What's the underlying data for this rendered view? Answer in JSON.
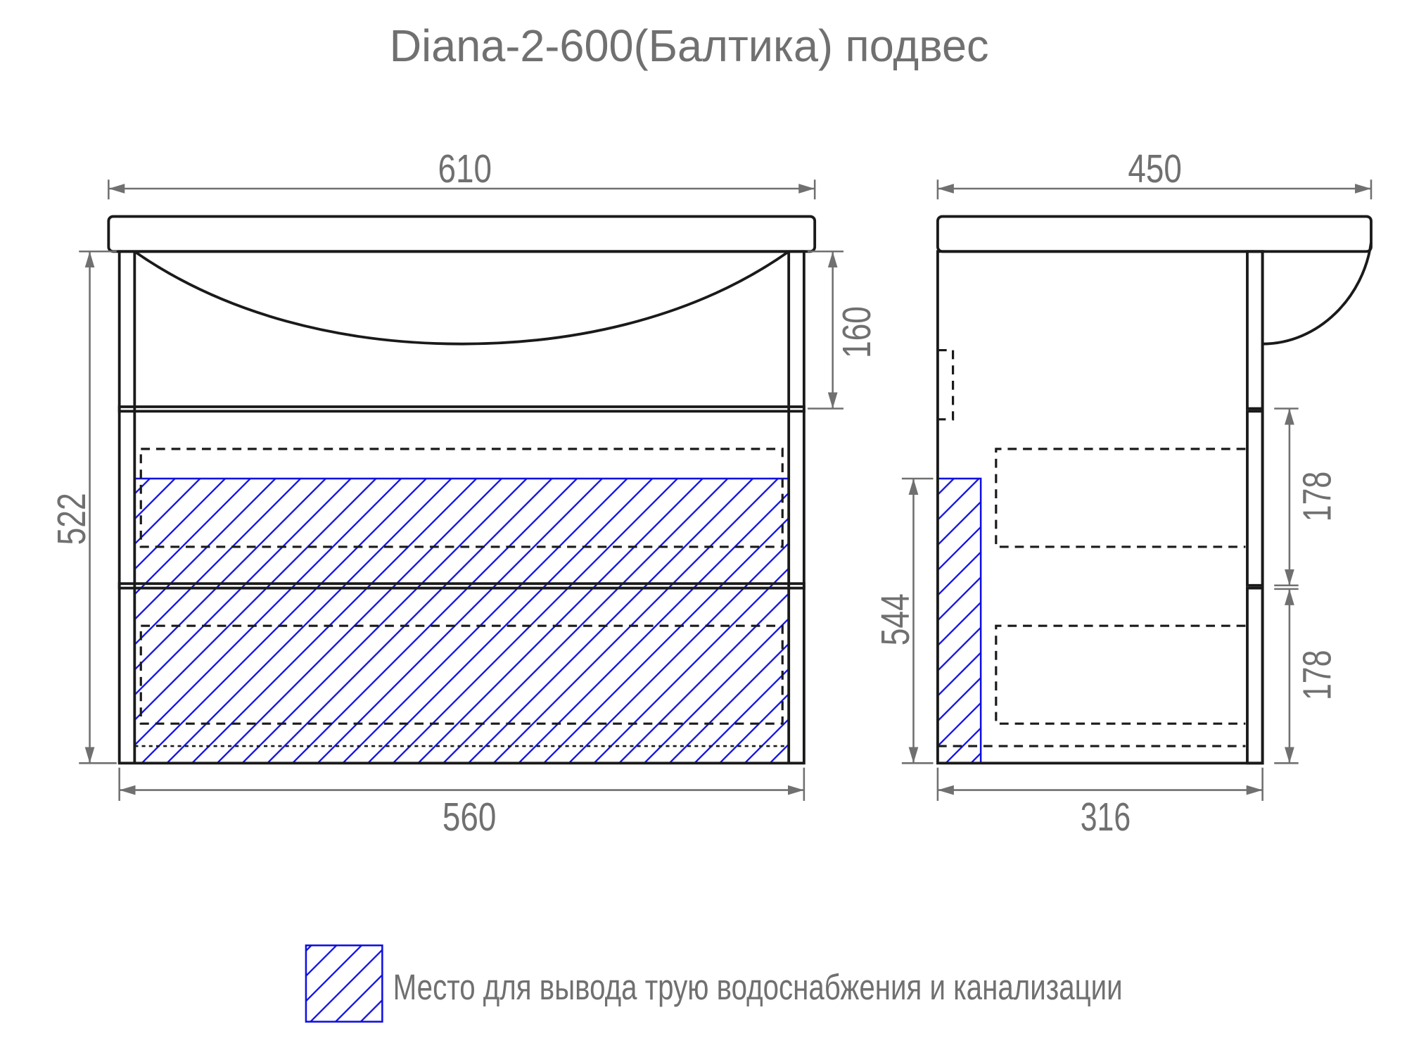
{
  "title": "Diana-2-600(Балтика) подвес",
  "front_view": {
    "dimensions": {
      "overall_width": "610",
      "body_width": "560",
      "height": "522",
      "basin_depth": "160"
    }
  },
  "side_view": {
    "dimensions": {
      "overall_depth": "450",
      "body_depth": "316",
      "pipe_zone_height": "544",
      "drawer_upper": "178",
      "drawer_lower": "178"
    }
  },
  "legend": {
    "label": "Место для вывода трую водоснабжения и канализации",
    "hatch_color": "#1010e0"
  },
  "colors": {
    "outline": "#1a1a1a",
    "dimension": "#707070",
    "hatch": "#1010e0"
  }
}
